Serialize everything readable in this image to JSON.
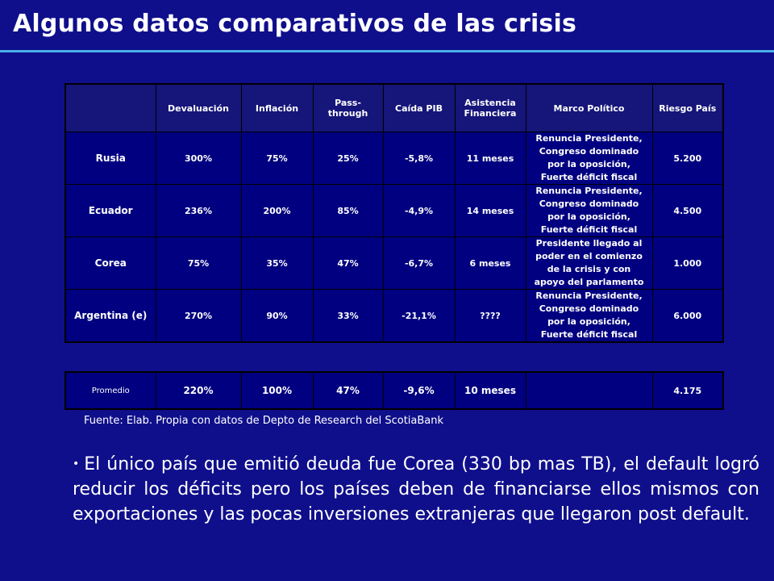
{
  "title": "Algunos datos comparativos de las crisis",
  "table": {
    "headers": [
      "Devaluación",
      "Inflación",
      "Pass-through",
      "Caída PIB",
      "Asistencia Financiera",
      "Marco Político",
      "Riesgo País"
    ],
    "rows": [
      {
        "country": "Rusia",
        "devaluacion": "300%",
        "inflacion": "75%",
        "pass_through": "25%",
        "caida_pib": "-5,8%",
        "asistencia": "11 meses",
        "marco_politico": "Renuncia Presidente, Congreso dominado por la oposición, Fuerte déficit fiscal",
        "riesgo_pais": "5.200"
      },
      {
        "country": "Ecuador",
        "devaluacion": "236%",
        "inflacion": "200%",
        "pass_through": "85%",
        "caida_pib": "-4,9%",
        "asistencia": "14 meses",
        "marco_politico": "Renuncia Presidente, Congreso dominado por la oposición, Fuerte déficit fiscal",
        "riesgo_pais": "4.500"
      },
      {
        "country": "Corea",
        "devaluacion": "75%",
        "inflacion": "35%",
        "pass_through": "47%",
        "caida_pib": "-6,7%",
        "asistencia": "6 meses",
        "marco_politico": "Presidente llegado al poder en el comienzo de la crisis y con apoyo del parlamento",
        "riesgo_pais": "1.000"
      },
      {
        "country": "Argentina (e)",
        "devaluacion": "270%",
        "inflacion": "90%",
        "pass_through": "33%",
        "caida_pib": "-21,1%",
        "asistencia": "????",
        "marco_politico": "Renuncia Presidente, Congreso dominado por la oposición, Fuerte déficit fiscal",
        "riesgo_pais": "6.000"
      }
    ],
    "average": {
      "label": "Promedio",
      "devaluacion": "220%",
      "inflacion": "100%",
      "pass_through": "47%",
      "caida_pib": "-9,6%",
      "asistencia": "10 meses",
      "marco_politico": "",
      "riesgo_pais": "4.175"
    }
  },
  "source": "Fuente: Elab. Propia con datos de Depto de Research del ScotiaBank",
  "bullet": {
    "symbol": "•",
    "text": "El único país que emitió deuda fue Corea (330 bp mas TB), el default logró reducir los déficits pero los países deben de financiarse ellos mismos con exportaciones y las pocas inversiones extranjeras que llegaron post default."
  },
  "colors": {
    "background": "#0f0f8c",
    "title_rule": "#4ab0e6",
    "table_fill": "#000080"
  }
}
